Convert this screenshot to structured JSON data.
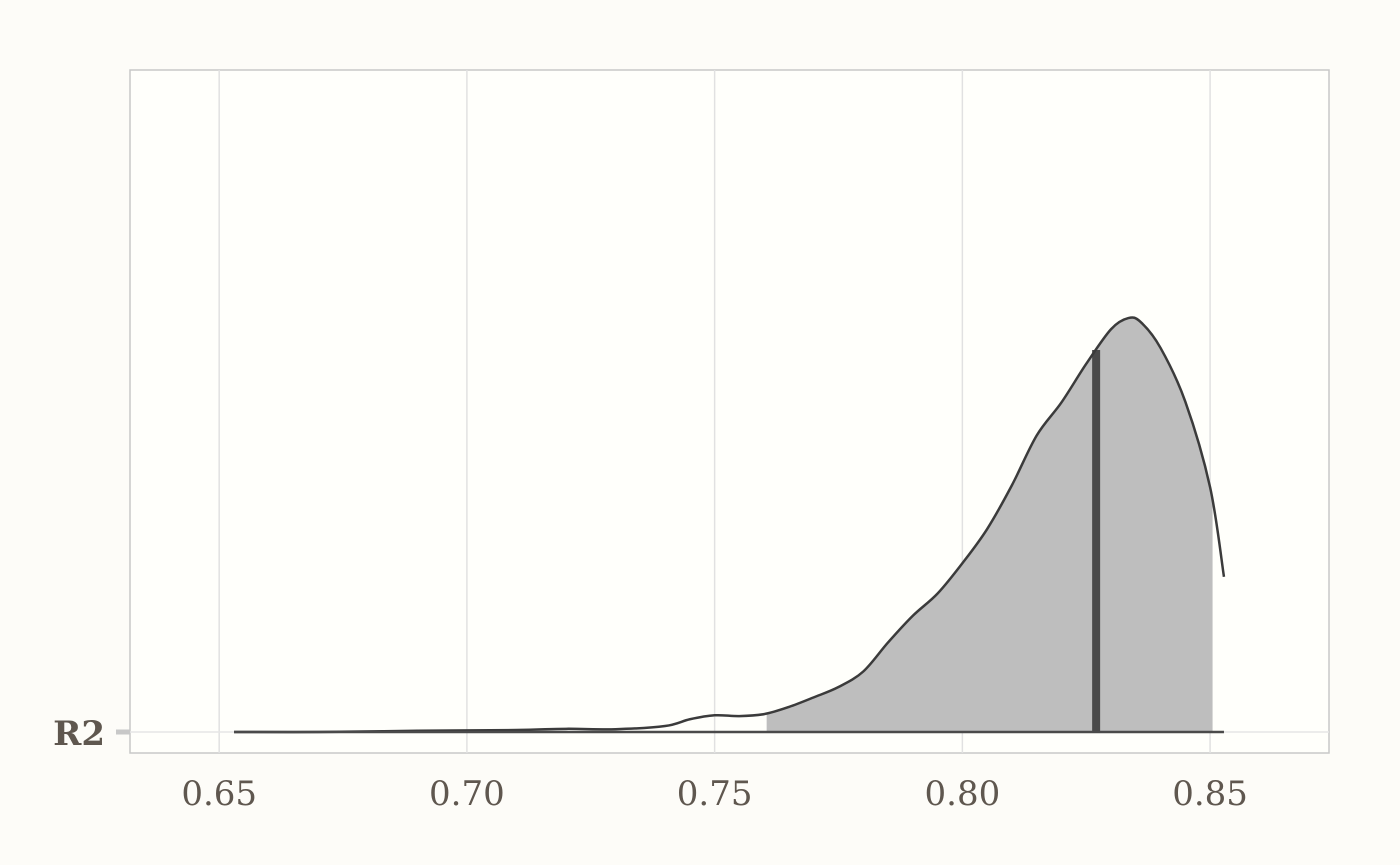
{
  "chart_data": {
    "type": "area",
    "title": "",
    "xlabel": "",
    "ylabel": "",
    "xlim": [
      0.632,
      0.874
    ],
    "x_ticks": [
      0.65,
      0.7,
      0.75,
      0.8,
      0.85
    ],
    "x_tick_labels": [
      "0.65",
      "0.70",
      "0.75",
      "0.80",
      "0.85"
    ],
    "y_categories": [
      "R2"
    ],
    "grid": "vertical",
    "legend": "none",
    "colors": {
      "background": "#fdfcf8",
      "panel": "#fffffb",
      "curve": "#3b3b3b",
      "fill": "#bebebe",
      "median": "#4a4a4a",
      "grid": "#e1e1e1",
      "border": "#c8c8c8",
      "text": "#5f574f"
    },
    "series": [
      {
        "category": "R2",
        "density": {
          "x": [
            0.653,
            0.67,
            0.69,
            0.71,
            0.72,
            0.73,
            0.74,
            0.745,
            0.75,
            0.755,
            0.76,
            0.765,
            0.77,
            0.775,
            0.78,
            0.785,
            0.79,
            0.795,
            0.8,
            0.805,
            0.81,
            0.815,
            0.82,
            0.825,
            0.83,
            0.8335,
            0.836,
            0.84,
            0.845,
            0.85,
            0.8528
          ],
          "y": [
            0.0,
            0.0,
            0.003,
            0.005,
            0.008,
            0.007,
            0.015,
            0.032,
            0.042,
            0.04,
            0.045,
            0.063,
            0.087,
            0.113,
            0.152,
            0.225,
            0.292,
            0.348,
            0.424,
            0.51,
            0.62,
            0.745,
            0.828,
            0.925,
            1.012,
            1.04,
            1.03,
            0.965,
            0.83,
            0.615,
            0.39
          ]
        },
        "interval": [
          0.7605,
          0.8505
        ],
        "median": 0.827
      }
    ]
  }
}
